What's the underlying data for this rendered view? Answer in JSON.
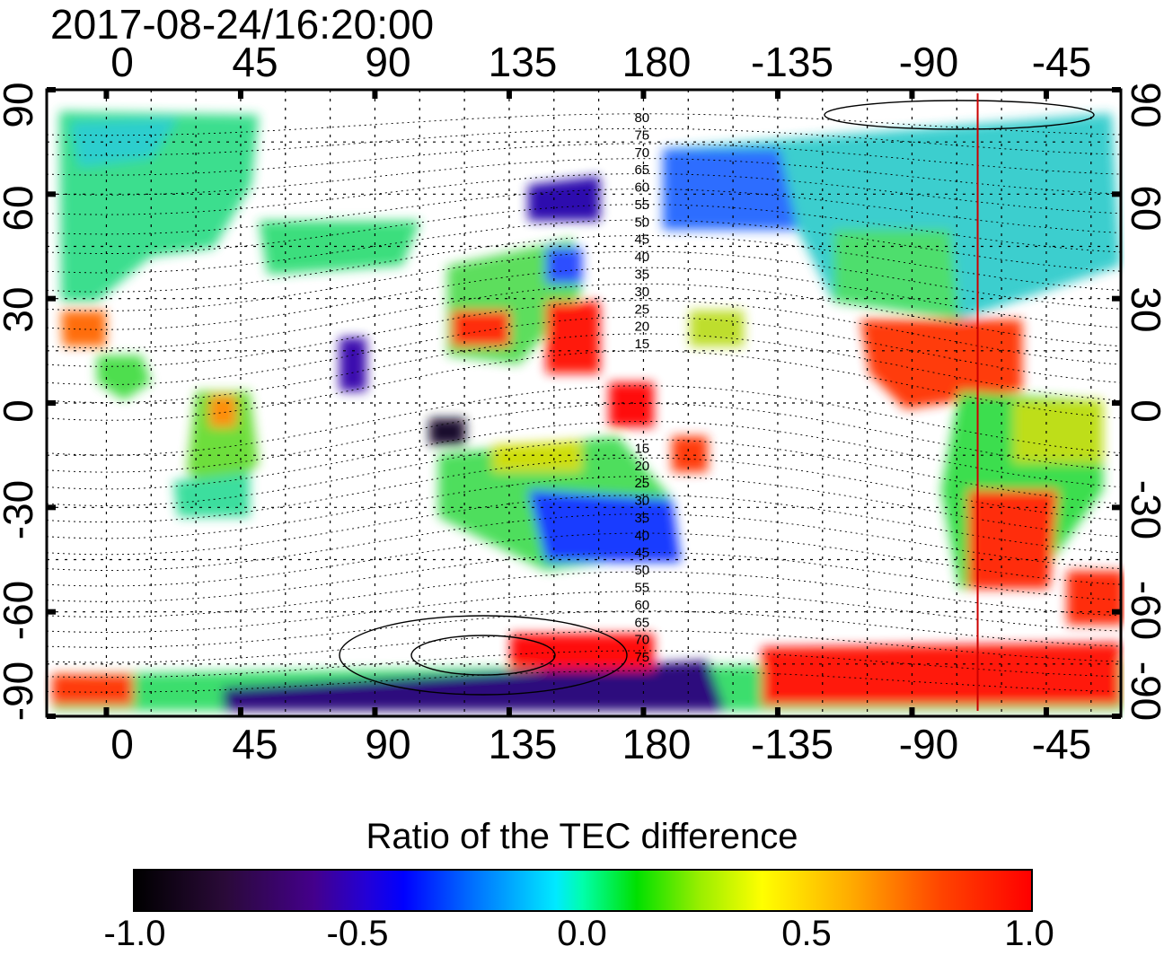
{
  "title": "2017-08-24/16:20:00",
  "axes": {
    "lon_ticks_top": [
      "0",
      "45",
      "90",
      "135",
      "180",
      "-135",
      "-90",
      "-45"
    ],
    "lon_ticks_bottom": [
      "0",
      "45",
      "90",
      "135",
      "180",
      "-135",
      "-90",
      "-45"
    ],
    "lat_ticks_left": [
      "90",
      "60",
      "30",
      "0",
      "-30",
      "-60",
      "-90"
    ],
    "lat_ticks_right": [
      "90",
      "60",
      "30",
      "0",
      "-30",
      "-60",
      "-90"
    ]
  },
  "map": {
    "lon_range": [
      -20,
      340
    ],
    "lat_range": [
      -90,
      90
    ],
    "grid": "dotted",
    "marker_line_lon": -68,
    "marker_line_color": "#cc0000",
    "contour_labels_north": [
      "80",
      "75",
      "70",
      "65",
      "60",
      "55",
      "50",
      "45",
      "40",
      "35",
      "30",
      "25",
      "20",
      "15"
    ],
    "contour_labels_south": [
      "15",
      "20",
      "25",
      "30",
      "35",
      "40",
      "45",
      "50",
      "55",
      "60",
      "65",
      "70",
      "75"
    ]
  },
  "colorbar": {
    "label": "Ratio of the TEC difference",
    "min": -1.0,
    "max": 1.0,
    "ticks": [
      "-1.0",
      "-0.5",
      "0.0",
      "0.5",
      "1.0"
    ],
    "colors": [
      "#000000",
      "#44008c",
      "#0000ff",
      "#00eaff",
      "#00e000",
      "#ffff00",
      "#ff0000"
    ]
  }
}
